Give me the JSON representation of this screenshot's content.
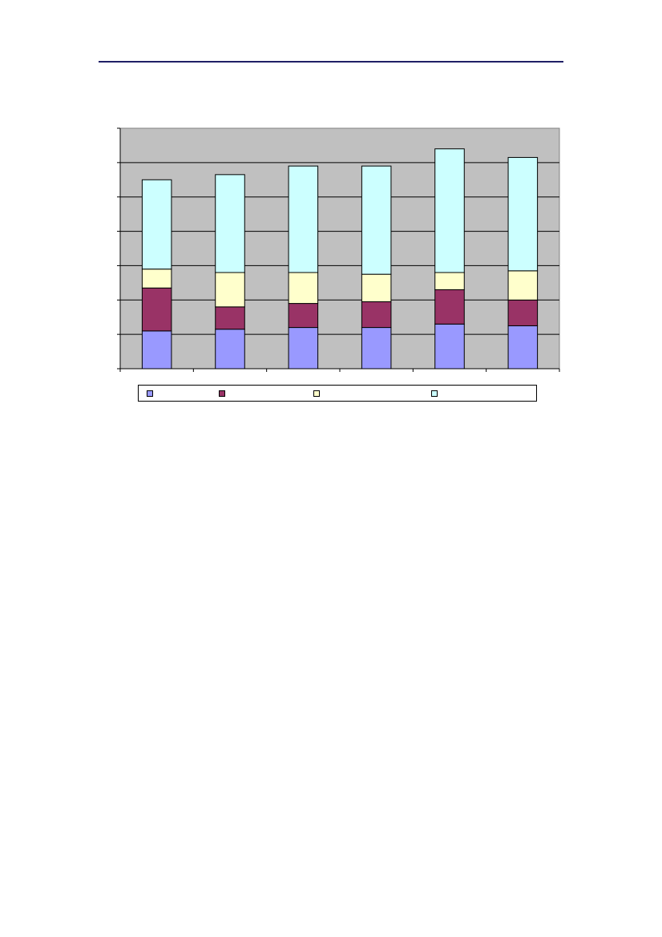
{
  "page": {
    "header_rule_color": "#1f1f66"
  },
  "chart_data": {
    "type": "bar",
    "stacked": true,
    "categories": [
      "",
      "",
      "",
      "",
      "",
      ""
    ],
    "series": [
      {
        "color": "#9999ff",
        "values": [
          11,
          11.5,
          12,
          12,
          13,
          12.5
        ]
      },
      {
        "color": "#993366",
        "values": [
          12.5,
          6.5,
          7,
          7.5,
          10,
          7.5
        ]
      },
      {
        "color": "#ffffcc",
        "values": [
          5.5,
          10,
          9,
          8,
          5,
          8.5
        ]
      },
      {
        "color": "#ccffff",
        "values": [
          26,
          28.5,
          31,
          31.5,
          36,
          33
        ]
      }
    ],
    "ylim": [
      0,
      70
    ],
    "ytick_step": 10,
    "grid": true,
    "plot_background": "#c0c0c0",
    "legend": "bottom",
    "title": "",
    "xlabel": "",
    "ylabel": ""
  }
}
